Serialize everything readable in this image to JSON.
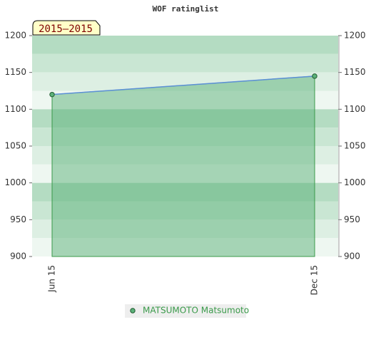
{
  "chart_data": {
    "type": "line",
    "title": "WOF ratinglist",
    "period": "2015–2015",
    "categories": [
      "Jun 15",
      "Dec 15"
    ],
    "series": [
      {
        "name": "MATSUMOTO Matsumoto",
        "color": "#5b8fd6",
        "values": [
          1120,
          1145
        ]
      }
    ],
    "ylim": [
      900,
      1200
    ],
    "yticks": [
      900,
      950,
      1000,
      1050,
      1100,
      1150,
      1200
    ],
    "right_axis": true
  }
}
